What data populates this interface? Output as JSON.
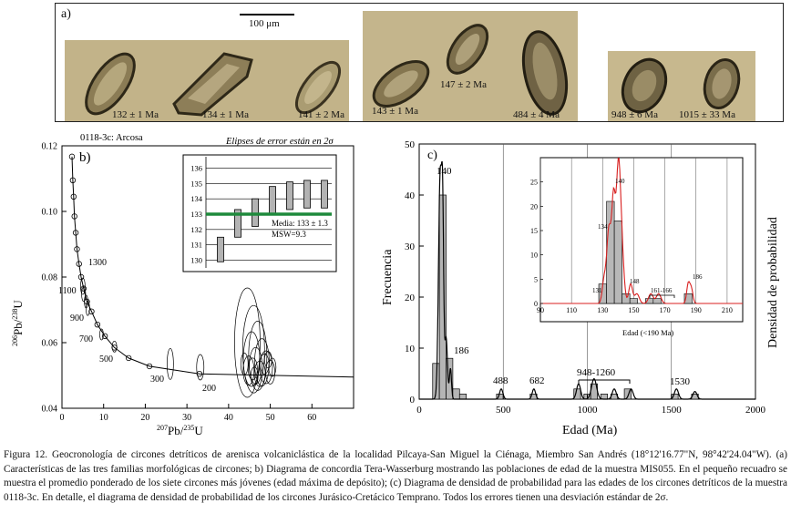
{
  "panel_a": {
    "label": "a)",
    "scale_bar": "100 μm",
    "ages": [
      "132 ± 1 Ma",
      "134 ± 1 Ma",
      "141 ± 2 Ma",
      "143 ± 1 Ma",
      "147 ± 2 Ma",
      "484 ± 4 Ma",
      "948 ± 6 Ma",
      "1015 ± 33 Ma"
    ]
  },
  "panel_b": {
    "label": "b)",
    "sample": "0118-3c: Arcosa",
    "note": "Elipses de error están en 2σ",
    "y_ticks": [
      "0.12",
      "0.10",
      "0.08",
      "0.06",
      "0.04"
    ],
    "x_ticks": [
      "0",
      "10",
      "20",
      "30",
      "40",
      "50",
      "60"
    ],
    "curve_ages": [
      "1300",
      "1100",
      "900",
      "700",
      "500",
      "300",
      "200"
    ],
    "inset_ticks": [
      "136",
      "135",
      "134",
      "133",
      "132",
      "131",
      "130"
    ],
    "inset_mean": "Media: 133 ± 1.3",
    "inset_msw": "MSW=9.3",
    "chart_data": {
      "type": "scatter",
      "title": "",
      "xlim": [
        0,
        70
      ],
      "ylim": [
        0.04,
        0.12
      ],
      "curve_points": [
        {
          "x": 2.4,
          "y": 0.1167
        },
        {
          "x": 2.6,
          "y": 0.1095
        },
        {
          "x": 2.8,
          "y": 0.1045
        },
        {
          "x": 3.0,
          "y": 0.0985
        },
        {
          "x": 3.3,
          "y": 0.0935
        },
        {
          "x": 3.6,
          "y": 0.0885
        },
        {
          "x": 4.1,
          "y": 0.084
        },
        {
          "x": 4.6,
          "y": 0.08
        },
        {
          "x": 5.2,
          "y": 0.0765
        },
        {
          "x": 6.0,
          "y": 0.0725
        },
        {
          "x": 7.1,
          "y": 0.0695
        },
        {
          "x": 8.5,
          "y": 0.0655
        },
        {
          "x": 10.3,
          "y": 0.062
        },
        {
          "x": 12.6,
          "y": 0.0585
        },
        {
          "x": 16.0,
          "y": 0.0553
        },
        {
          "x": 21.0,
          "y": 0.0528
        },
        {
          "x": 33.0,
          "y": 0.0505
        }
      ],
      "inset_bars": [
        {
          "low": 129.9,
          "high": 131.5
        },
        {
          "low": 131.5,
          "high": 133.3
        },
        {
          "low": 132.2,
          "high": 134.0
        },
        {
          "low": 133.0,
          "high": 134.8
        },
        {
          "low": 133.3,
          "high": 135.1
        },
        {
          "low": 133.4,
          "high": 135.2
        },
        {
          "low": 133.4,
          "high": 135.2
        }
      ],
      "inset_mean_value": 133
    }
  },
  "panel_c": {
    "label": "c)",
    "y_label": "Frecuencia",
    "y2_label": "Densidad de probabilidad",
    "x_label": "Edad (Ma)",
    "y_ticks": [
      "0",
      "10",
      "20",
      "30",
      "40",
      "50"
    ],
    "x_ticks": [
      "0",
      "500",
      "1000",
      "1500",
      "2000"
    ],
    "peak_labels": [
      "140",
      "186",
      "488",
      "682",
      "948-1260",
      "1530"
    ],
    "inset_x_label": "Edad (<190 Ma)",
    "inset_y_ticks": [
      "0",
      "5",
      "10",
      "15",
      "20",
      "25"
    ],
    "inset_x_ticks": [
      "90",
      "110",
      "130",
      "150",
      "170",
      "190",
      "210"
    ],
    "inset_peak_labels": [
      "140",
      "134",
      "131",
      "148",
      "161-166",
      "186"
    ],
    "chart_data": {
      "type": "bar",
      "title": "",
      "xlabel": "Edad (Ma)",
      "ylabel": "Frecuencia",
      "xlim": [
        0,
        2000
      ],
      "ylim": [
        0,
        50
      ],
      "bin_width": 40,
      "bins": [
        {
          "x": 100,
          "count": 7
        },
        {
          "x": 140,
          "count": 40
        },
        {
          "x": 180,
          "count": 8
        },
        {
          "x": 220,
          "count": 2
        },
        {
          "x": 260,
          "count": 1
        },
        {
          "x": 480,
          "count": 1
        },
        {
          "x": 680,
          "count": 1
        },
        {
          "x": 940,
          "count": 2
        },
        {
          "x": 1000,
          "count": 1
        },
        {
          "x": 1040,
          "count": 3
        },
        {
          "x": 1100,
          "count": 1
        },
        {
          "x": 1160,
          "count": 1
        },
        {
          "x": 1240,
          "count": 2
        },
        {
          "x": 1520,
          "count": 1
        },
        {
          "x": 1640,
          "count": 1
        }
      ],
      "inset": {
        "xlim": [
          90,
          220
        ],
        "ylim": [
          0,
          30
        ],
        "bin_width": 5,
        "bins": [
          {
            "x": 130,
            "count": 4
          },
          {
            "x": 135,
            "count": 21
          },
          {
            "x": 140,
            "count": 17
          },
          {
            "x": 145,
            "count": 2
          },
          {
            "x": 150,
            "count": 1
          },
          {
            "x": 160,
            "count": 1
          },
          {
            "x": 165,
            "count": 1
          },
          {
            "x": 185,
            "count": 2
          }
        ]
      }
    }
  },
  "caption": "Figura 12. Geocronología de circones detríticos de arenisca volcaniclástica de la localidad Pilcaya-San Miguel la Ciénaga, Miembro San Andrés (18°12'16.77\"N, 98°42'24.04\"W). (a) Características de las tres familias morfológicas de circones; b) Diagrama de concordia Tera-Wasserburg mostrando las poblaciones de edad de la muestra MIS055. En el pequeño recuadro se muestra el promedio ponderado de los siete circones más jóvenes (edad máxima de depósito); (c) Diagrama de densidad de probabilidad para las edades de los circones detríticos de la muestra 0118-3c. En detalle, el diagrama de densidad de probabilidad de los circones Jurásico-Cretácico Temprano. Todos los errores tienen una desviación estándar de 2σ."
}
